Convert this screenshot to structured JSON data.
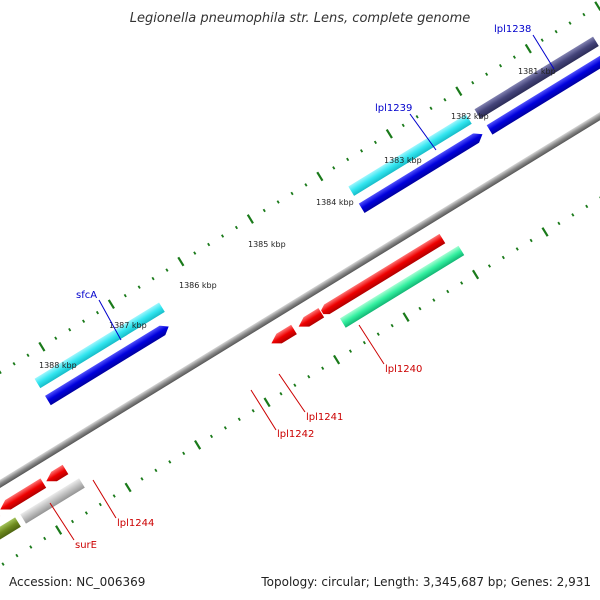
{
  "title": "Legionella pneumophila str. Lens, complete genome",
  "footer": {
    "accession": "Accession: NC_006369",
    "summary": "Topology: circular; Length: 3,345,687 bp; Genes: 2,931"
  },
  "scale_labels": [
    "1381 kbp",
    "1382 kbp",
    "1383 kbp",
    "1384 kbp",
    "1385 kbp",
    "1386 kbp",
    "1387 kbp",
    "1388 kbp"
  ],
  "genes": [
    {
      "name": "lpl1238",
      "color": "#0000cc"
    },
    {
      "name": "lpl1239",
      "color": "#0000cc"
    },
    {
      "name": "sfcA",
      "color": "#0000cc"
    },
    {
      "name": "lpl1240",
      "color": "#cc0000"
    },
    {
      "name": "lpl1241",
      "color": "#cc0000"
    },
    {
      "name": "lpl1242",
      "color": "#cc0000"
    },
    {
      "name": "lpl1244",
      "color": "#cc0000"
    },
    {
      "name": "surE",
      "color": "#cc0000"
    }
  ],
  "colors": {
    "backbone": "#808080",
    "tick": "#1a7a1a",
    "cyan_feature": "#33e6f0",
    "blue_feature": "#0000dd",
    "red_feature": "#ee0000",
    "green_feature": "#33f0a0",
    "navy_feature": "#44447a",
    "grey_feature": "#c0c0c0",
    "olive_feature": "#6e8a1e"
  }
}
